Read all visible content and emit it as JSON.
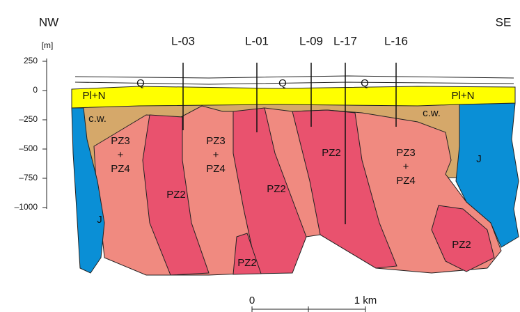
{
  "header": {
    "left": "NW",
    "right": "SE"
  },
  "depth_axis": {
    "unit": "[m]",
    "ticks": [
      "250",
      "0",
      "–250",
      "–500",
      "–750",
      "–1000"
    ]
  },
  "wells": [
    "L-03",
    "L-01",
    "L-09",
    "L-17",
    "L-16"
  ],
  "units": [
    {
      "lines": [
        "Q"
      ]
    },
    {
      "lines": [
        "Q"
      ]
    },
    {
      "lines": [
        "Q"
      ]
    },
    {
      "lines": [
        "Pl+N"
      ]
    },
    {
      "lines": [
        "Pl+N"
      ]
    },
    {
      "lines": [
        "c.w."
      ]
    },
    {
      "lines": [
        "c.w."
      ]
    },
    {
      "lines": [
        "PZ3",
        "+",
        "PZ4"
      ]
    },
    {
      "lines": [
        "PZ3",
        "+",
        "PZ4"
      ]
    },
    {
      "lines": [
        "PZ3",
        "+",
        "PZ4"
      ]
    },
    {
      "lines": [
        "PZ2"
      ]
    },
    {
      "lines": [
        "PZ2"
      ]
    },
    {
      "lines": [
        "PZ2"
      ]
    },
    {
      "lines": [
        "PZ2"
      ]
    },
    {
      "lines": [
        "PZ2"
      ]
    },
    {
      "lines": [
        "J"
      ]
    },
    {
      "lines": [
        "J"
      ]
    }
  ],
  "scale": {
    "start": "0",
    "end": "1 km"
  }
}
